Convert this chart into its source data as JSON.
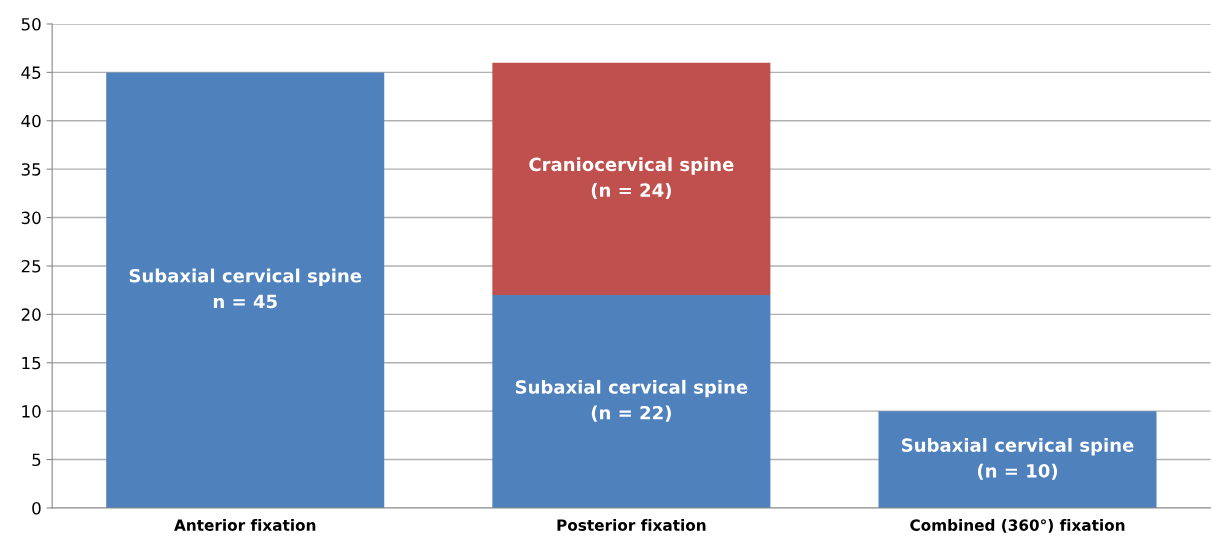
{
  "chart_data": {
    "type": "bar",
    "stacked": true,
    "categories": [
      "Anterior fixation",
      "Posterior fixation",
      "Combined (360°) fixation"
    ],
    "series": [
      {
        "color": "#4f81bd",
        "values": [
          45,
          22,
          10
        ],
        "value_labels": [
          "Subaxial cervical spine\nn = 45",
          "Subaxial cervical spine\n(n = 22)",
          "Subaxial cervical spine\n(n = 10)"
        ]
      },
      {
        "color": "#c0504d",
        "values": [
          null,
          24,
          null
        ],
        "value_labels": [
          null,
          "Craniocervical spine\n(n = 24)",
          null
        ]
      }
    ],
    "ylim": [
      0,
      50
    ],
    "yticks": [
      0,
      5,
      10,
      15,
      20,
      25,
      30,
      35,
      40,
      45,
      50
    ],
    "grid": "y",
    "legend": false
  }
}
